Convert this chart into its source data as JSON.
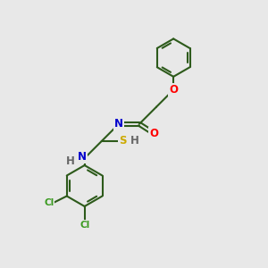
{
  "bg_color": "#e8e8e8",
  "bond_color": "#2d5a1b",
  "bond_width": 1.5,
  "atom_colors": {
    "O": "#ff0000",
    "N": "#0000cc",
    "S": "#ccaa00",
    "Cl": "#3a9a20",
    "H": "#666666",
    "C": "#2d5a1b"
  },
  "font_size_atom": 8.5,
  "font_size_small": 7.5
}
